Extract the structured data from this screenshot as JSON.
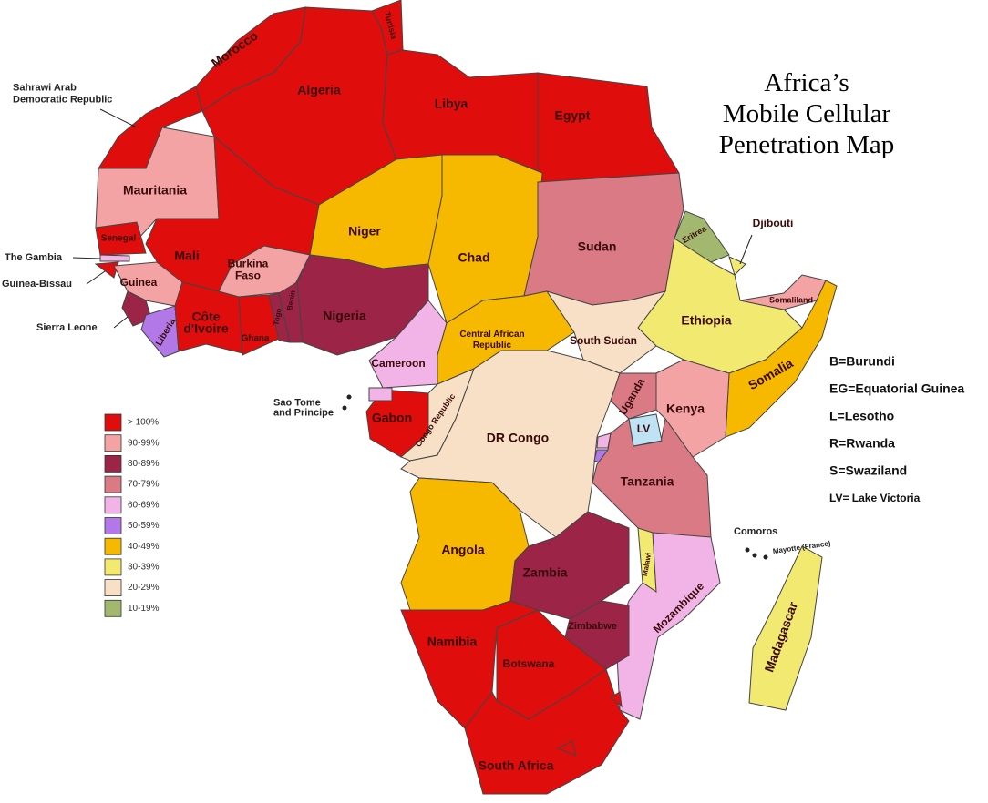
{
  "title": [
    "Africa’s",
    "Mobile Cellular",
    "Penetration Map"
  ],
  "legend": [
    {
      "label": "> 100%",
      "color": "#e00d0d"
    },
    {
      "label": "90-99%",
      "color": "#f3a3a3"
    },
    {
      "label": "80-89%",
      "color": "#9b2447"
    },
    {
      "label": "70-79%",
      "color": "#da7a85"
    },
    {
      "label": "60-69%",
      "color": "#f2b3e6"
    },
    {
      "label": "50-59%",
      "color": "#b278e8"
    },
    {
      "label": "40-49%",
      "color": "#f7b800"
    },
    {
      "label": "30-39%",
      "color": "#f2e970"
    },
    {
      "label": "20-29%",
      "color": "#f8e0c6"
    },
    {
      "label": "10-19%",
      "color": "#a3b86f"
    }
  ],
  "notes": [
    "B=Burundi",
    "EG=Equatorial Guinea",
    "L=Lesotho",
    "R=Rwanda",
    "S=Swaziland",
    "LV= Lake Victoria"
  ],
  "countries": [
    {
      "label": "Morocco",
      "category": "> 100%"
    },
    {
      "label": "Tunisia",
      "category": "> 100%"
    },
    {
      "label": "Algeria",
      "category": "> 100%"
    },
    {
      "label": "Libya",
      "category": "> 100%"
    },
    {
      "label": "Egypt",
      "category": "> 100%"
    },
    {
      "label": [
        "Sahrawi Arab",
        "Democratic Republic"
      ],
      "category": "> 100%"
    },
    {
      "label": "Mauritania",
      "category": "90-99%"
    },
    {
      "label": "Mali",
      "category": "> 100%"
    },
    {
      "label": "Niger",
      "category": "40-49%"
    },
    {
      "label": "Chad",
      "category": "40-49%"
    },
    {
      "label": "Sudan",
      "category": "70-79%"
    },
    {
      "label": "Eritrea",
      "category": "10-19%"
    },
    {
      "label": "Djibouti",
      "category": "30-39%"
    },
    {
      "label": "Ethiopia",
      "category": "30-39%"
    },
    {
      "label": "Somaliland",
      "category": "90-99%"
    },
    {
      "label": "Somalia",
      "category": "40-49%"
    },
    {
      "label": "Senegal",
      "category": "> 100%"
    },
    {
      "label": "The Gambia",
      "category": "60-69%"
    },
    {
      "label": "Guinea-Bissau",
      "category": "> 100%"
    },
    {
      "label": "Guinea",
      "category": "90-99%"
    },
    {
      "label": "Sierra Leone",
      "category": "80-89%"
    },
    {
      "label": "Liberia",
      "category": "50-59%"
    },
    {
      "label": [
        "Côte",
        "d'Ivoire"
      ],
      "category": "> 100%"
    },
    {
      "label": [
        "Burkina",
        "Faso"
      ],
      "category": "90-99%"
    },
    {
      "label": "Ghana",
      "category": "> 100%"
    },
    {
      "label": "Togo",
      "category": "80-89%"
    },
    {
      "label": "Benin",
      "category": "80-89%"
    },
    {
      "label": "Nigeria",
      "category": "80-89%"
    },
    {
      "label": "Cameroon",
      "category": "60-69%"
    },
    {
      "label": [
        "Central African",
        "Republic"
      ],
      "category": "40-49%"
    },
    {
      "label": "South Sudan",
      "category": "20-29%"
    },
    {
      "label": "Gabon",
      "category": "> 100%"
    },
    {
      "category": "60-69%"
    },
    {
      "label": "Congo Republic",
      "category": "20-29%"
    },
    {
      "label": "DR Congo",
      "category": "20-29%"
    },
    {
      "label": "Uganda",
      "category": "70-79%"
    },
    {
      "label": "Kenya",
      "category": "90-99%"
    },
    {
      "category": "60-69%"
    },
    {
      "category": "50-59%"
    },
    {
      "label": "Tanzania",
      "category": "70-79%"
    },
    {
      "label": "Angola",
      "category": "40-49%"
    },
    {
      "label": "Zambia",
      "category": "80-89%"
    },
    {
      "label": "Malawi",
      "category": "30-39%"
    },
    {
      "label": "Mozambique",
      "category": "60-69%"
    },
    {
      "label": "Zimbabwe",
      "category": "80-89%"
    },
    {
      "label": "Namibia",
      "category": "> 100%"
    },
    {
      "label": "Botswana",
      "category": "> 100%"
    },
    {
      "label": "South Africa",
      "category": "> 100%"
    },
    {
      "category": "> 100%"
    },
    {
      "category": "> 100%"
    },
    {
      "label": "Madagascar",
      "category": "30-39%"
    }
  ],
  "islands": [
    {
      "label": [
        "Sao Tome",
        "and Principe"
      ]
    },
    {
      "label": "Comoros"
    },
    {
      "label": "Mayotte (France)"
    }
  ],
  "lake": {
    "label": "LV"
  }
}
